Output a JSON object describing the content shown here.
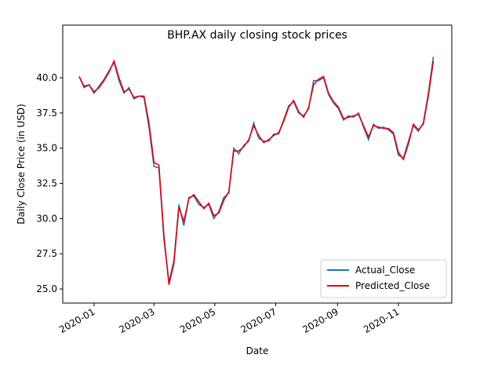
{
  "chart_data": {
    "type": "line",
    "title": "BHP.AX daily closing stock prices",
    "xlabel": "Date",
    "ylabel": "Daily Close Price (in USD)",
    "x": [
      -15,
      -10,
      -5,
      0,
      5,
      10,
      15,
      20,
      25,
      30,
      35,
      40,
      45,
      50,
      55,
      60,
      65,
      70,
      75,
      80,
      85,
      90,
      95,
      100,
      105,
      110,
      115,
      120,
      125,
      130,
      135,
      140,
      145,
      150,
      155,
      160,
      165,
      170,
      175,
      180,
      185,
      190,
      195,
      200,
      205,
      210,
      215,
      220,
      225,
      230,
      235,
      240,
      245,
      250,
      255,
      260,
      265,
      270,
      275,
      280,
      285,
      290,
      295,
      300,
      305,
      310,
      315,
      320,
      325,
      330,
      335,
      340
    ],
    "series": [
      {
        "name": "Actual_Close",
        "color": "#1f77b4",
        "values": [
          40.1,
          39.3,
          39.5,
          38.9,
          39.4,
          39.9,
          40.5,
          41.1,
          39.8,
          38.9,
          39.3,
          38.5,
          38.7,
          38.6,
          36.5,
          33.7,
          33.6,
          28.5,
          25.5,
          27.0,
          31.0,
          29.5,
          31.5,
          31.6,
          31.0,
          30.8,
          31.0,
          30.0,
          30.5,
          31.5,
          31.8,
          35.0,
          34.6,
          35.2,
          35.5,
          36.8,
          35.7,
          35.5,
          35.5,
          36.0,
          36.0,
          37.0,
          38.0,
          38.3,
          37.5,
          37.3,
          37.8,
          39.8,
          39.8,
          40.0,
          38.8,
          38.2,
          37.8,
          37.0,
          37.3,
          37.2,
          37.5,
          36.5,
          35.6,
          36.7,
          36.4,
          36.5,
          36.3,
          36.0,
          34.5,
          34.3,
          35.5,
          36.6,
          36.2,
          36.8,
          38.9,
          41.5
        ]
      },
      {
        "name": "Predicted_Close",
        "color": "#e8000b",
        "values": [
          40.1,
          39.4,
          39.5,
          39.0,
          39.3,
          39.8,
          40.4,
          41.2,
          40.0,
          39.0,
          39.2,
          38.6,
          38.7,
          38.7,
          36.8,
          34.0,
          33.8,
          28.8,
          25.3,
          26.8,
          30.8,
          29.8,
          31.4,
          31.7,
          31.2,
          30.7,
          31.1,
          30.2,
          30.4,
          31.3,
          31.9,
          34.8,
          34.8,
          35.1,
          35.6,
          36.6,
          35.9,
          35.4,
          35.6,
          35.9,
          36.1,
          36.9,
          37.9,
          38.4,
          37.6,
          37.2,
          37.9,
          39.5,
          39.9,
          40.1,
          38.9,
          38.3,
          37.9,
          37.1,
          37.2,
          37.3,
          37.4,
          36.6,
          35.8,
          36.6,
          36.5,
          36.4,
          36.4,
          36.1,
          34.7,
          34.2,
          35.3,
          36.7,
          36.3,
          36.7,
          38.7,
          41.2
        ]
      }
    ],
    "xlim": [
      -31.4,
      358.5
    ],
    "xticks": [
      {
        "value": 0,
        "label": "2020-01"
      },
      {
        "value": 60,
        "label": "2020-03"
      },
      {
        "value": 121,
        "label": "2020-05"
      },
      {
        "value": 182,
        "label": "2020-07"
      },
      {
        "value": 244,
        "label": "2020-09"
      },
      {
        "value": 305,
        "label": "2020-11"
      }
    ],
    "ylim": [
      24.0,
      43.74
    ],
    "yticks": [
      {
        "value": 25,
        "label": "25.0"
      },
      {
        "value": 27.5,
        "label": "27.5"
      },
      {
        "value": 30,
        "label": "30.0"
      },
      {
        "value": 32.5,
        "label": "32.5"
      },
      {
        "value": 35,
        "label": "35.0"
      },
      {
        "value": 37.5,
        "label": "37.5"
      },
      {
        "value": 40,
        "label": "40.0"
      }
    ],
    "legend": "lower right"
  }
}
